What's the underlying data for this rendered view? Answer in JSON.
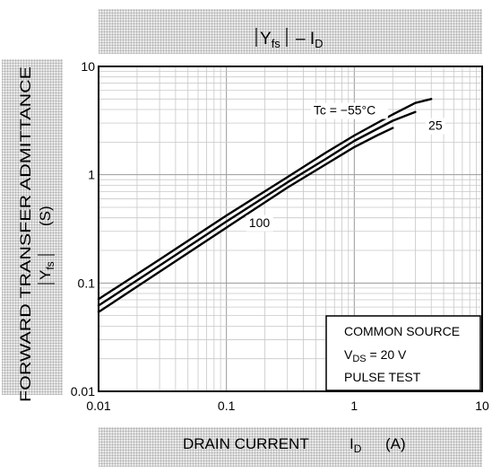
{
  "chart_data": {
    "type": "line",
    "title": "|Yfs| – ID",
    "title_parts": {
      "main": "Y",
      "main_sub": "fs",
      "suffix": "– I",
      "suffix_sub": "D"
    },
    "xlabel": "DRAIN CURRENT ID (A)",
    "xlabel_parts": {
      "main": "DRAIN CURRENT",
      "sym": "I",
      "sym_sub": "D",
      "unit": "(A)"
    },
    "ylabel": "FORWARD TRANSFER ADMITTANCE |Yfs| (S)",
    "ylabel_parts": {
      "line1": "FORWARD TRANSFER ADMITTANCE",
      "sym": "Y",
      "sym_sub": "fs",
      "unit": "(S)"
    },
    "x_scale": "log",
    "y_scale": "log",
    "xlim": [
      0.01,
      10
    ],
    "ylim": [
      0.01,
      10
    ],
    "x_ticks": [
      "0.01",
      "0.1",
      "1",
      "10"
    ],
    "y_ticks": [
      "10",
      "1",
      "0.1",
      "0.01"
    ],
    "grid": true,
    "series": [
      {
        "name": "Tc = −55°C",
        "x": [
          0.01,
          0.03,
          0.1,
          0.3,
          0.6,
          1,
          2,
          3,
          4
        ],
        "y": [
          0.071,
          0.165,
          0.42,
          0.95,
          1.6,
          2.3,
          3.6,
          4.6,
          5.0
        ]
      },
      {
        "name": "25",
        "x": [
          0.01,
          0.03,
          0.1,
          0.3,
          0.6,
          1,
          2,
          3
        ],
        "y": [
          0.062,
          0.145,
          0.37,
          0.85,
          1.4,
          2.05,
          3.15,
          3.8
        ]
      },
      {
        "name": "100",
        "x": [
          0.01,
          0.03,
          0.1,
          0.3,
          0.6,
          1,
          1.5,
          2
        ],
        "y": [
          0.054,
          0.127,
          0.325,
          0.76,
          1.25,
          1.8,
          2.3,
          2.7
        ]
      }
    ],
    "curve_labels": [
      {
        "text": "Tc = −55°C",
        "x": 0.48,
        "y": 3.6
      },
      {
        "text": "25",
        "x": 3.8,
        "y": 2.6
      },
      {
        "text": "100",
        "x": 0.15,
        "y": 0.33
      }
    ],
    "legend_box": {
      "lines": [
        "COMMON SOURCE",
        "V",
        "DS",
        " = 20 V",
        "PULSE TEST"
      ]
    },
    "legend": {
      "line1": "COMMON SOURCE",
      "line2_sym": "V",
      "line2_sub": "DS",
      "line2_rest": " = 20 V",
      "line3": "PULSE TEST"
    }
  }
}
